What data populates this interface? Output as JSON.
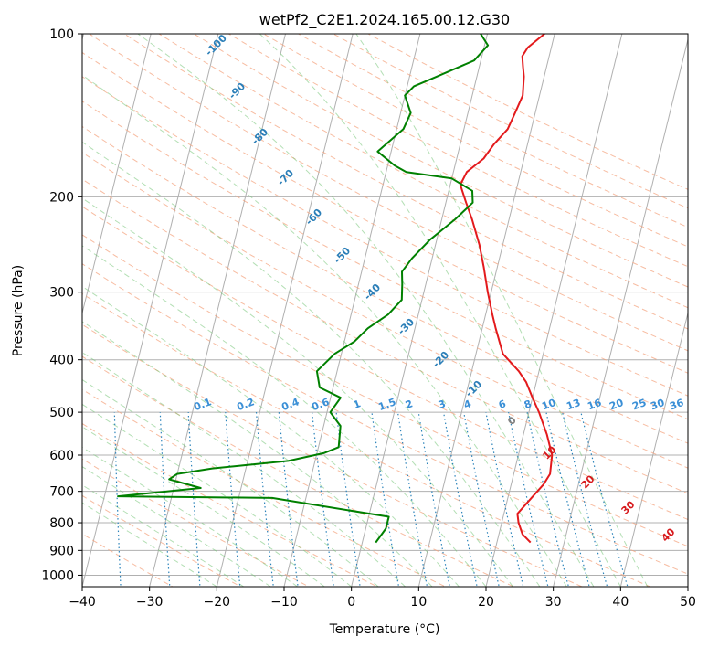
{
  "chart_data": {
    "type": "line",
    "title": "wetPf2_C2E1.2024.165.00.12.G30",
    "xlabel": "Temperature (°C)",
    "ylabel": "Pressure (hPa)",
    "xlim": [
      -40,
      50
    ],
    "ylim": [
      1050,
      100
    ],
    "y_scale": "log",
    "grid": true,
    "x_ticks": [
      "−40",
      "−30",
      "−20",
      "−10",
      "0",
      "10",
      "20",
      "30",
      "40",
      "50"
    ],
    "y_ticks": [
      "100",
      "200",
      "300",
      "400",
      "500",
      "600",
      "700",
      "800",
      "900",
      "1000"
    ],
    "series": [
      {
        "color": "#e31a1c",
        "x": [
          25.0,
          23.5,
          22.5,
          22.0,
          23.5,
          24.8,
          25.4,
          25.0,
          23.5,
          21.5,
          20.0,
          18.5,
          17.0,
          14.0,
          12.0,
          11.0,
          9.5,
          8.0,
          6.5,
          4.5,
          3.0,
          2.0,
          1.5,
          2.0,
          4.0,
          5.0,
          6.5,
          7.0,
          7.5,
          7.0,
          6.5,
          6.0,
          6.5,
          8.5
        ],
        "y": [
          870,
          840,
          800,
          770,
          720,
          680,
          650,
          600,
          550,
          500,
          470,
          440,
          420,
          390,
          350,
          330,
          300,
          270,
          245,
          220,
          205,
          195,
          190,
          180,
          170,
          160,
          150,
          140,
          130,
          120,
          115,
          110,
          106,
          100
        ]
      },
      {
        "color": "#008000",
        "x": [
          2.0,
          3.0,
          3.0,
          -15.0,
          -38.0,
          -26.0,
          -31.0,
          -30.0,
          -25.0,
          -14.0,
          -9.0,
          -7.0,
          -7.5,
          -9.5,
          -8.5,
          -12.0,
          -13.0,
          -11.0,
          -8.5,
          -7.0,
          -4.5,
          -3.0,
          -3.5,
          -4.0,
          -3.0,
          -1.0,
          2.0,
          4.0,
          3.5,
          0.0,
          -7.0,
          -9.0,
          -12.0,
          -9.0,
          -8.5,
          -10.0,
          -9.0,
          -6.0,
          -1.0,
          0.5,
          -1.0
        ],
        "y": [
          870,
          820,
          780,
          720,
          715,
          690,
          665,
          650,
          635,
          615,
          595,
          580,
          530,
          500,
          470,
          450,
          420,
          390,
          370,
          350,
          330,
          310,
          290,
          275,
          260,
          240,
          220,
          205,
          195,
          185,
          180,
          175,
          165,
          150,
          140,
          130,
          125,
          120,
          112,
          105,
          100
        ]
      }
    ],
    "reference_labels": {
      "dry_adiabats": [
        "-100",
        "-90",
        "-80",
        "-70",
        "-60",
        "-50",
        "-40",
        "-30",
        "-20",
        "-10"
      ],
      "moist_adiabats": [
        "0",
        "10",
        "20",
        "30",
        "40"
      ],
      "mixing_ratios": [
        "0.1",
        "0.2",
        "0.4",
        "0.6",
        "1",
        "1.5",
        "2",
        "3",
        "4",
        "6",
        "8",
        "10",
        "13",
        "16",
        "20",
        "25",
        "30",
        "36"
      ]
    }
  }
}
